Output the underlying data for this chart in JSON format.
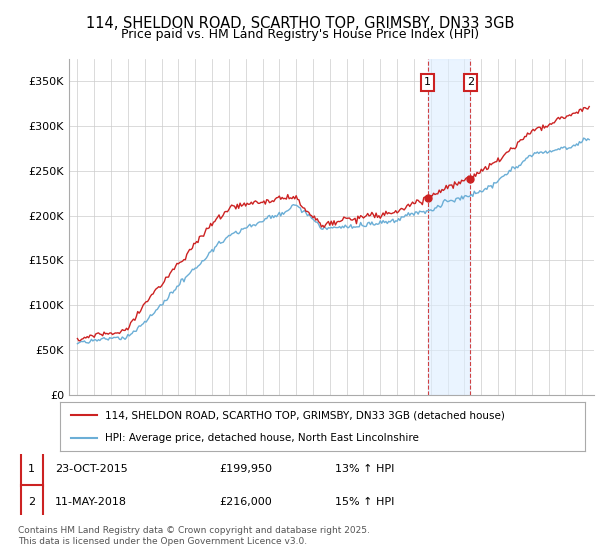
{
  "title_line1": "114, SHELDON ROAD, SCARTHO TOP, GRIMSBY, DN33 3GB",
  "title_line2": "Price paid vs. HM Land Registry's House Price Index (HPI)",
  "title_fontsize": 10.5,
  "subtitle_fontsize": 9,
  "ylabel_ticks": [
    "£0",
    "£50K",
    "£100K",
    "£150K",
    "£200K",
    "£250K",
    "£300K",
    "£350K"
  ],
  "ylabel_values": [
    0,
    50000,
    100000,
    150000,
    200000,
    250000,
    300000,
    350000
  ],
  "ylim": [
    0,
    375000
  ],
  "xlim_start": 1994.5,
  "xlim_end": 2025.7,
  "hpi_color": "#6baed6",
  "price_color": "#cc2222",
  "shade_color": "#ddeeff",
  "shade_alpha": 0.6,
  "transaction1_x": 2015.81,
  "transaction1_y": 199950,
  "transaction1_label": "1",
  "transaction2_x": 2018.36,
  "transaction2_y": 216000,
  "transaction2_label": "2",
  "legend_line1": "114, SHELDON ROAD, SCARTHO TOP, GRIMSBY, DN33 3GB (detached house)",
  "legend_line2": "HPI: Average price, detached house, North East Lincolnshire",
  "footnote": "Contains HM Land Registry data © Crown copyright and database right 2025.\nThis data is licensed under the Open Government Licence v3.0.",
  "background_color": "#ffffff",
  "grid_color": "#cccccc"
}
